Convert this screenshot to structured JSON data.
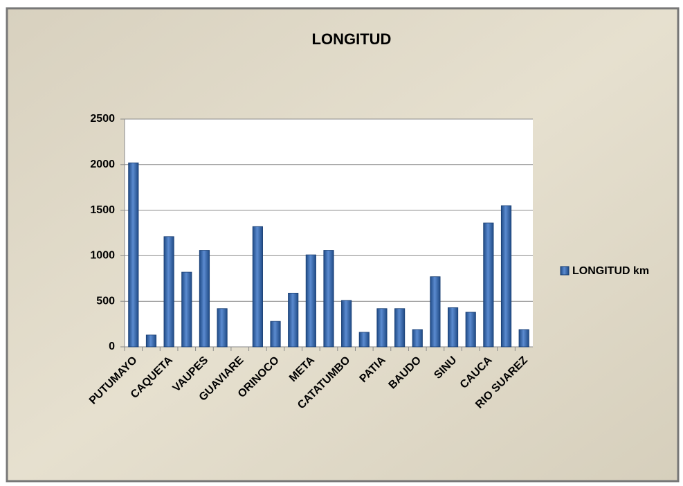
{
  "chart_data": {
    "type": "bar",
    "title": "LONGITUD",
    "categories": [
      "PUTUMAYO",
      null,
      "CAQUETA",
      null,
      "VAUPES",
      null,
      "GUAVIARE",
      null,
      "ORINOCO",
      null,
      "META",
      null,
      "CATATUMBO",
      null,
      "PATIA",
      null,
      "BAUDO",
      null,
      "SINU",
      null,
      "CAUCA",
      null,
      "RIO SUAREZ"
    ],
    "series": [
      {
        "name": "LONGITUD km",
        "color": "#2f5f9f",
        "values": [
          2020,
          130,
          1210,
          820,
          1060,
          420,
          null,
          1320,
          280,
          590,
          1010,
          1060,
          510,
          160,
          420,
          420,
          190,
          770,
          430,
          380,
          1360,
          1550,
          190
        ]
      }
    ],
    "ylim": [
      0,
      2500
    ],
    "yticks": [
      0,
      500,
      1000,
      1500,
      2000,
      2500
    ],
    "grid": true,
    "legend": "right"
  }
}
